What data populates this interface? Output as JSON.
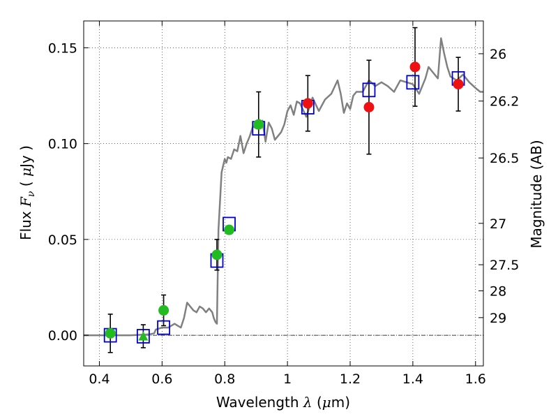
{
  "chart_data": {
    "type": "scatter",
    "title": "",
    "xlabel": {
      "prefix": "Wavelength ",
      "symbol": "λ",
      "unit_open": " (",
      "unit_mu": "μ",
      "unit_rest": "m)"
    },
    "ylabel": {
      "prefix": "Flux ",
      "symbol": "F",
      "subscript": "ν",
      "unit_open": " ( ",
      "unit_mu": "μ",
      "unit_rest": "Jy )"
    },
    "y2label": "Magnitude (AB)",
    "xlim": [
      0.35,
      1.625
    ],
    "ylim": [
      -0.016,
      0.164
    ],
    "xticks": [
      0.4,
      0.6,
      0.8,
      1.0,
      1.2,
      1.4,
      1.6
    ],
    "xtick_labels": [
      "0.4",
      "0.6",
      "0.8",
      "1",
      "1.2",
      "1.4",
      "1.6"
    ],
    "yticks": [
      0.0,
      0.05,
      0.1,
      0.15
    ],
    "ytick_labels": [
      "0.00",
      "0.05",
      "0.10",
      "0.15"
    ],
    "y2ticks": [
      {
        "label": "26",
        "flux": 0.1469
      },
      {
        "label": "26.2",
        "flux": 0.1222
      },
      {
        "label": "26.5",
        "flux": 0.0925
      },
      {
        "label": "27",
        "flux": 0.0584
      },
      {
        "label": "27.5",
        "flux": 0.0368
      },
      {
        "label": "28",
        "flux": 0.0232
      },
      {
        "label": "29",
        "flux": 0.0092
      }
    ],
    "grid": true,
    "zero_line": true,
    "colors": {
      "sed": "#808080",
      "model_box": "#0000cc",
      "optical": "#22bb22",
      "nir": "#ee1111",
      "errorbar": "#000000"
    },
    "model_sed": {
      "x": [
        0.35,
        0.45,
        0.5,
        0.56,
        0.575,
        0.58,
        0.6,
        0.62,
        0.64,
        0.65,
        0.66,
        0.67,
        0.68,
        0.69,
        0.7,
        0.71,
        0.72,
        0.73,
        0.74,
        0.75,
        0.76,
        0.765,
        0.77,
        0.775,
        0.78,
        0.79,
        0.8,
        0.805,
        0.81,
        0.82,
        0.83,
        0.84,
        0.85,
        0.86,
        0.87,
        0.88,
        0.89,
        0.9,
        0.91,
        0.92,
        0.93,
        0.94,
        0.95,
        0.96,
        0.97,
        0.98,
        0.99,
        1.0,
        1.01,
        1.02,
        1.03,
        1.04,
        1.06,
        1.08,
        1.1,
        1.12,
        1.14,
        1.16,
        1.17,
        1.18,
        1.19,
        1.2,
        1.21,
        1.22,
        1.24,
        1.26,
        1.28,
        1.3,
        1.32,
        1.34,
        1.36,
        1.38,
        1.4,
        1.42,
        1.44,
        1.45,
        1.46,
        1.48,
        1.49,
        1.5,
        1.51,
        1.52,
        1.54,
        1.56,
        1.58,
        1.6,
        1.615,
        1.625
      ],
      "y": [
        0.0,
        0.0,
        0.0,
        0.0005,
        0.001,
        0.003,
        0.004,
        0.004,
        0.006,
        0.005,
        0.004,
        0.009,
        0.017,
        0.015,
        0.013,
        0.012,
        0.015,
        0.014,
        0.012,
        0.014,
        0.012,
        0.009,
        0.007,
        0.006,
        0.055,
        0.085,
        0.092,
        0.09,
        0.093,
        0.092,
        0.097,
        0.096,
        0.104,
        0.095,
        0.1,
        0.104,
        0.109,
        0.108,
        0.11,
        0.112,
        0.101,
        0.111,
        0.108,
        0.102,
        0.104,
        0.106,
        0.11,
        0.117,
        0.12,
        0.115,
        0.122,
        0.121,
        0.114,
        0.124,
        0.117,
        0.123,
        0.126,
        0.133,
        0.126,
        0.116,
        0.121,
        0.118,
        0.125,
        0.127,
        0.127,
        0.133,
        0.13,
        0.132,
        0.13,
        0.127,
        0.133,
        0.132,
        0.131,
        0.126,
        0.134,
        0.14,
        0.138,
        0.134,
        0.155,
        0.147,
        0.14,
        0.135,
        0.133,
        0.136,
        0.132,
        0.129,
        0.127,
        0.127
      ]
    },
    "model_points": [
      {
        "x": 0.435,
        "y": 0.0
      },
      {
        "x": 0.54,
        "y": -0.0005
      },
      {
        "x": 0.605,
        "y": 0.004
      },
      {
        "x": 0.775,
        "y": 0.039
      },
      {
        "x": 0.814,
        "y": 0.058
      },
      {
        "x": 0.908,
        "y": 0.108
      },
      {
        "x": 1.065,
        "y": 0.119
      },
      {
        "x": 1.26,
        "y": 0.128
      },
      {
        "x": 1.4,
        "y": 0.132
      },
      {
        "x": 1.545,
        "y": 0.134
      }
    ],
    "observations": [
      {
        "x": 0.435,
        "y": 0.001,
        "err": 0.01,
        "group": "optical",
        "marker": "circle"
      },
      {
        "x": 0.54,
        "y": -0.0005,
        "err": 0.006,
        "group": "optical",
        "marker": "triangle"
      },
      {
        "x": 0.605,
        "y": 0.013,
        "err": 0.008,
        "group": "optical",
        "marker": "circle"
      },
      {
        "x": 0.775,
        "y": 0.042,
        "err": 0.008,
        "group": "optical",
        "marker": "circle"
      },
      {
        "x": 0.814,
        "y": 0.055,
        "err": 0.0,
        "group": "optical",
        "marker": "circle"
      },
      {
        "x": 0.908,
        "y": 0.11,
        "err": 0.017,
        "group": "optical",
        "marker": "circle"
      },
      {
        "x": 1.065,
        "y": 0.121,
        "err": 0.0145,
        "group": "nir",
        "marker": "circle"
      },
      {
        "x": 1.26,
        "y": 0.119,
        "err": 0.0245,
        "group": "nir",
        "marker": "circle"
      },
      {
        "x": 1.407,
        "y": 0.14,
        "err": 0.0205,
        "group": "nir",
        "marker": "circle"
      },
      {
        "x": 1.545,
        "y": 0.131,
        "err": 0.014,
        "group": "nir",
        "marker": "circle"
      }
    ]
  }
}
